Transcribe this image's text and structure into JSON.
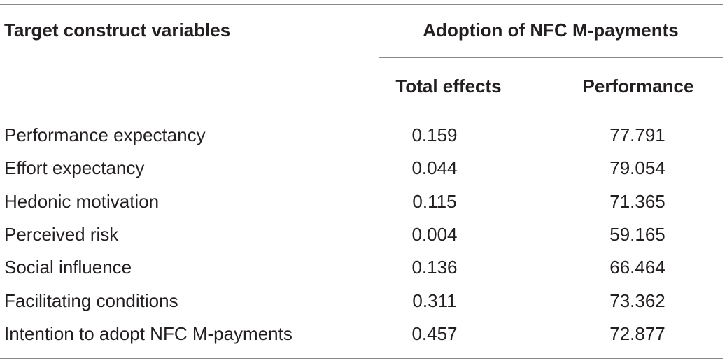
{
  "table": {
    "header": {
      "target": "Target construct variables",
      "group": "Adoption of NFC M-payments",
      "total": "Total effects",
      "performance": "Performance"
    },
    "rows": [
      {
        "name": "Performance expectancy",
        "total": "0.159",
        "performance": "77.791"
      },
      {
        "name": "Effort expectancy",
        "total": "0.044",
        "performance": "79.054"
      },
      {
        "name": "Hedonic motivation",
        "total": "0.115",
        "performance": "71.365"
      },
      {
        "name": "Perceived risk",
        "total": "0.004",
        "performance": "59.165"
      },
      {
        "name": "Social influence",
        "total": "0.136",
        "performance": "66.464"
      },
      {
        "name": "Facilitating conditions",
        "total": "0.311",
        "performance": "73.362"
      },
      {
        "name": "Intention to adopt NFC M-payments",
        "total": "0.457",
        "performance": "72.877"
      }
    ]
  }
}
